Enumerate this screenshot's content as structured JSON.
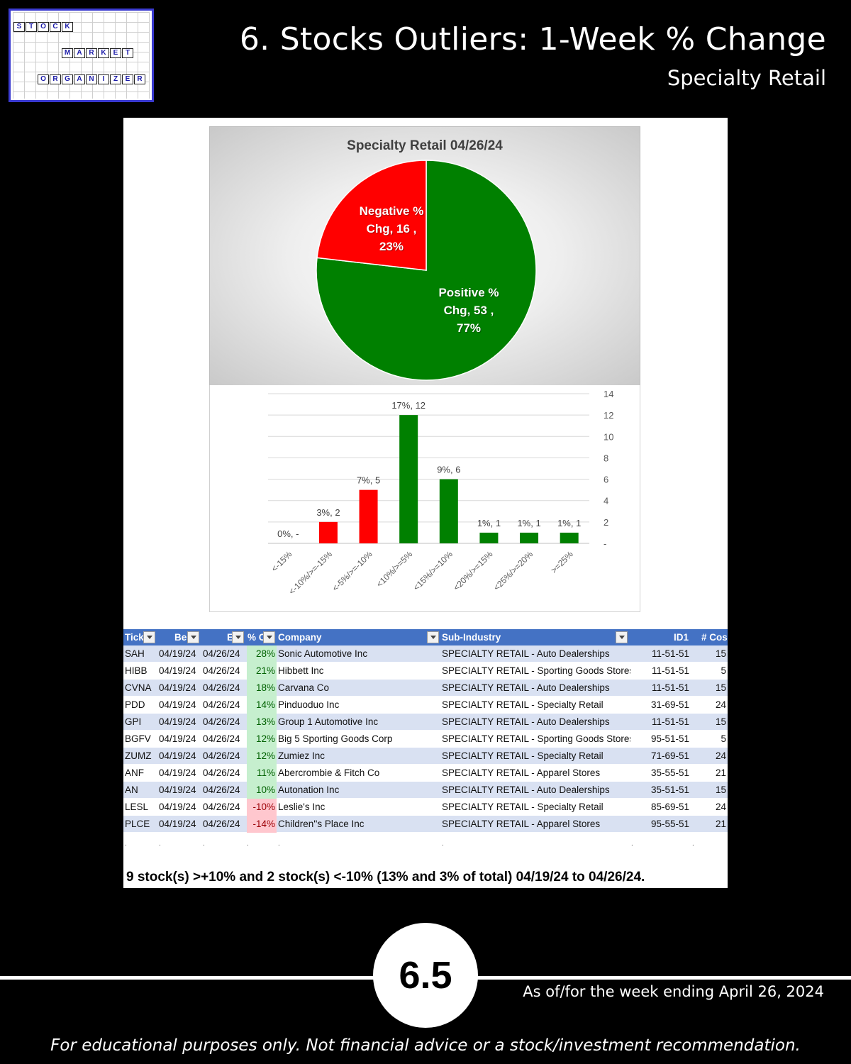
{
  "header": {
    "title": "6. Stocks Outliers: 1-Week % Change",
    "subtitle": "Specialty Retail"
  },
  "logo": {
    "row1": [
      "S",
      "T",
      "O",
      "C",
      "K"
    ],
    "row2": [
      "M",
      "A",
      "R",
      "K",
      "E",
      "T"
    ],
    "row3": [
      "O",
      "R",
      "G",
      "A",
      "N",
      "I",
      "Z",
      "E",
      "R"
    ],
    "frame_color": "#3a3ad0",
    "letter_color": "#1a1aa8"
  },
  "chart_data": [
    {
      "type": "pie",
      "title": "Specialty Retail 04/26/24",
      "slices": [
        {
          "label": "Negative % Chg",
          "value": 16,
          "percent": 23,
          "color": "#ff0000",
          "label_lines": [
            "Negative %",
            "Chg,  16 ,",
            "23%"
          ]
        },
        {
          "label": "Positive % Chg",
          "value": 53,
          "percent": 77,
          "color": "#008000",
          "label_lines": [
            "Positive %",
            "Chg,  53 ,",
            "77%"
          ]
        }
      ]
    },
    {
      "type": "bar",
      "categories": [
        "<-15%",
        "<-10%/>=-15%",
        "<-5%/>=-10%",
        "<10%/>=5%",
        "<15%/>=10%",
        "<20%/>=15%",
        "<25%/>=20%",
        ">=25%"
      ],
      "values": [
        0,
        2,
        5,
        12,
        6,
        1,
        1,
        1
      ],
      "data_labels": [
        "0%,  -",
        "3%,  2",
        "7%,  5",
        "17%,  12",
        "9%,  6",
        "1%,  1",
        "1%,  1",
        "1%,  1"
      ],
      "colors": [
        "#ff0000",
        "#ff0000",
        "#ff0000",
        "#008000",
        "#008000",
        "#008000",
        "#008000",
        "#008000"
      ],
      "ylim": [
        0,
        14
      ],
      "yticks": [
        "-",
        "2",
        "4",
        "6",
        "8",
        "10",
        "12",
        "14"
      ],
      "y_axis_side": "right",
      "grid": true
    }
  ],
  "table": {
    "headers": [
      "Tick",
      "Be",
      "E",
      "% C",
      "Company",
      "Sub-Industry",
      "ID1",
      "# Cos"
    ],
    "rows": [
      {
        "ticker": "SAH",
        "begin": "04/19/24",
        "end": "04/26/24",
        "pct": "28%",
        "company": "Sonic Automotive Inc",
        "sub": "SPECIALTY RETAIL - Auto Dealerships",
        "id1": "11-51-51",
        "cos": "15",
        "neg": false
      },
      {
        "ticker": "HIBB",
        "begin": "04/19/24",
        "end": "04/26/24",
        "pct": "21%",
        "company": "Hibbett Inc",
        "sub": "SPECIALTY RETAIL - Sporting Goods Stores",
        "id1": "11-51-51",
        "cos": "5",
        "neg": false
      },
      {
        "ticker": "CVNA",
        "begin": "04/19/24",
        "end": "04/26/24",
        "pct": "18%",
        "company": "Carvana Co",
        "sub": "SPECIALTY RETAIL - Auto Dealerships",
        "id1": "11-51-51",
        "cos": "15",
        "neg": false
      },
      {
        "ticker": "PDD",
        "begin": "04/19/24",
        "end": "04/26/24",
        "pct": "14%",
        "company": "Pinduoduo Inc",
        "sub": "SPECIALTY RETAIL - Specialty Retail",
        "id1": "31-69-51",
        "cos": "24",
        "neg": false
      },
      {
        "ticker": "GPI",
        "begin": "04/19/24",
        "end": "04/26/24",
        "pct": "13%",
        "company": "Group 1 Automotive Inc",
        "sub": "SPECIALTY RETAIL - Auto Dealerships",
        "id1": "11-51-51",
        "cos": "15",
        "neg": false
      },
      {
        "ticker": "BGFV",
        "begin": "04/19/24",
        "end": "04/26/24",
        "pct": "12%",
        "company": "Big 5 Sporting Goods Corp",
        "sub": "SPECIALTY RETAIL - Sporting Goods Stores",
        "id1": "95-51-51",
        "cos": "5",
        "neg": false
      },
      {
        "ticker": "ZUMZ",
        "begin": "04/19/24",
        "end": "04/26/24",
        "pct": "12%",
        "company": "Zumiez Inc",
        "sub": "SPECIALTY RETAIL - Specialty Retail",
        "id1": "71-69-51",
        "cos": "24",
        "neg": false
      },
      {
        "ticker": "ANF",
        "begin": "04/19/24",
        "end": "04/26/24",
        "pct": "11%",
        "company": "Abercrombie & Fitch Co",
        "sub": "SPECIALTY RETAIL - Apparel Stores",
        "id1": "35-55-51",
        "cos": "21",
        "neg": false
      },
      {
        "ticker": "AN",
        "begin": "04/19/24",
        "end": "04/26/24",
        "pct": "10%",
        "company": "Autonation Inc",
        "sub": "SPECIALTY RETAIL - Auto Dealerships",
        "id1": "35-51-51",
        "cos": "15",
        "neg": false
      },
      {
        "ticker": "LESL",
        "begin": "04/19/24",
        "end": "04/26/24",
        "pct": "-10%",
        "company": "Leslie's Inc",
        "sub": "SPECIALTY RETAIL - Specialty Retail",
        "id1": "85-69-51",
        "cos": "24",
        "neg": true
      },
      {
        "ticker": "PLCE",
        "begin": "04/19/24",
        "end": "04/26/24",
        "pct": "-14%",
        "company": "Children''s Place Inc",
        "sub": "SPECIALTY RETAIL - Apparel Stores",
        "id1": "95-55-51",
        "cos": "21",
        "neg": true
      }
    ]
  },
  "summary": "9 stock(s) >+10% and 2 stock(s) <-10% (13% and 3% of total) 04/19/24 to 04/26/24.",
  "footer": {
    "badge": "6.5",
    "as_of": "As of/for the week ending April 26, 2024",
    "disclaimer": "For educational purposes only. Not financial advice or a stock/investment recommendation."
  }
}
